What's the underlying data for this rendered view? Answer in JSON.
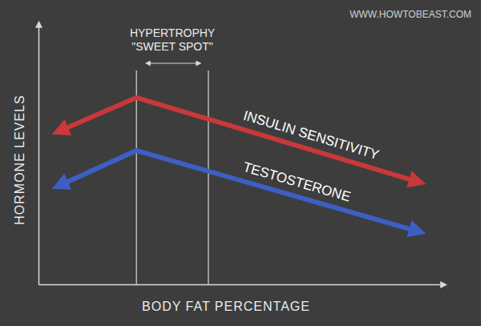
{
  "chart_data": {
    "type": "line",
    "x_label": "BODY FAT PERCENTAGE",
    "y_label": "HORMONE LEVELS",
    "xlim": [
      0,
      100
    ],
    "ylim": [
      0,
      100
    ],
    "tick_labels": false,
    "grid": false,
    "x": [
      4.5,
      24.1,
      94.1
    ],
    "series": [
      {
        "name": "INSULIN SENSITIVITY",
        "color": "#c9383a",
        "values": [
          58.1,
          71.3,
          38.8
        ],
        "marker": "arrow",
        "line_style": "solid"
      },
      {
        "name": "TESTOSTERONE",
        "color": "#3d5fc4",
        "values": [
          37.3,
          51.1,
          19.9
        ],
        "marker": "arrow",
        "line_style": "solid"
      }
    ],
    "annotations": [
      {
        "text": [
          "HYPERTROPHY",
          "\"SWEET SPOT\""
        ],
        "x": [
          24.1,
          41.8
        ]
      }
    ],
    "watermark": "WWW.HOWTOBEAST.COM"
  }
}
